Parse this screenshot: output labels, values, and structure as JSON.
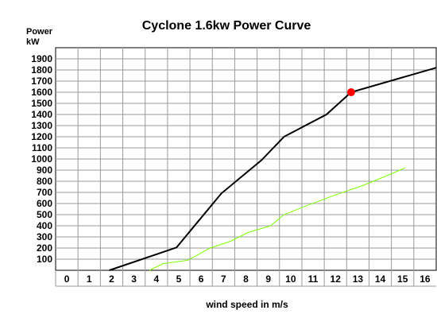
{
  "chart_data": {
    "type": "line",
    "title": "Cyclone 1.6kw Power Curve",
    "ylabel_line1": "Power",
    "ylabel_line2": "kW",
    "xlabel": "wind speed in m/s",
    "xlim": [
      -0.5,
      16.5
    ],
    "ylim": [
      0,
      2000
    ],
    "x_ticks": [
      0,
      1,
      2,
      3,
      4,
      5,
      6,
      7,
      8,
      9,
      10,
      11,
      12,
      13,
      14,
      15,
      16
    ],
    "y_ticks": [
      100,
      200,
      300,
      400,
      500,
      600,
      700,
      800,
      900,
      1000,
      1100,
      1200,
      1300,
      1400,
      1500,
      1600,
      1700,
      1800,
      1900
    ],
    "grid": true,
    "legend": "none",
    "series": [
      {
        "color": "#000000",
        "x": [
          1.9,
          4.9,
          6.9,
          8.7,
          9.7,
          11.6,
          12.7,
          16.5
        ],
        "y": [
          0,
          205,
          690,
          990,
          1200,
          1400,
          1600,
          1820
        ]
      },
      {
        "color": "#7CFC00",
        "x": [
          3.7,
          4.3,
          5.4,
          6.4,
          7.3,
          8.1,
          9.1,
          9.7,
          10.7,
          11.9,
          13.2,
          14.3,
          15.1
        ],
        "y": [
          0,
          60,
          90,
          200,
          260,
          340,
          400,
          500,
          580,
          670,
          760,
          850,
          920
        ]
      }
    ],
    "markers": [
      {
        "x": 12.7,
        "y": 1600,
        "color": "#ff0000"
      }
    ]
  }
}
